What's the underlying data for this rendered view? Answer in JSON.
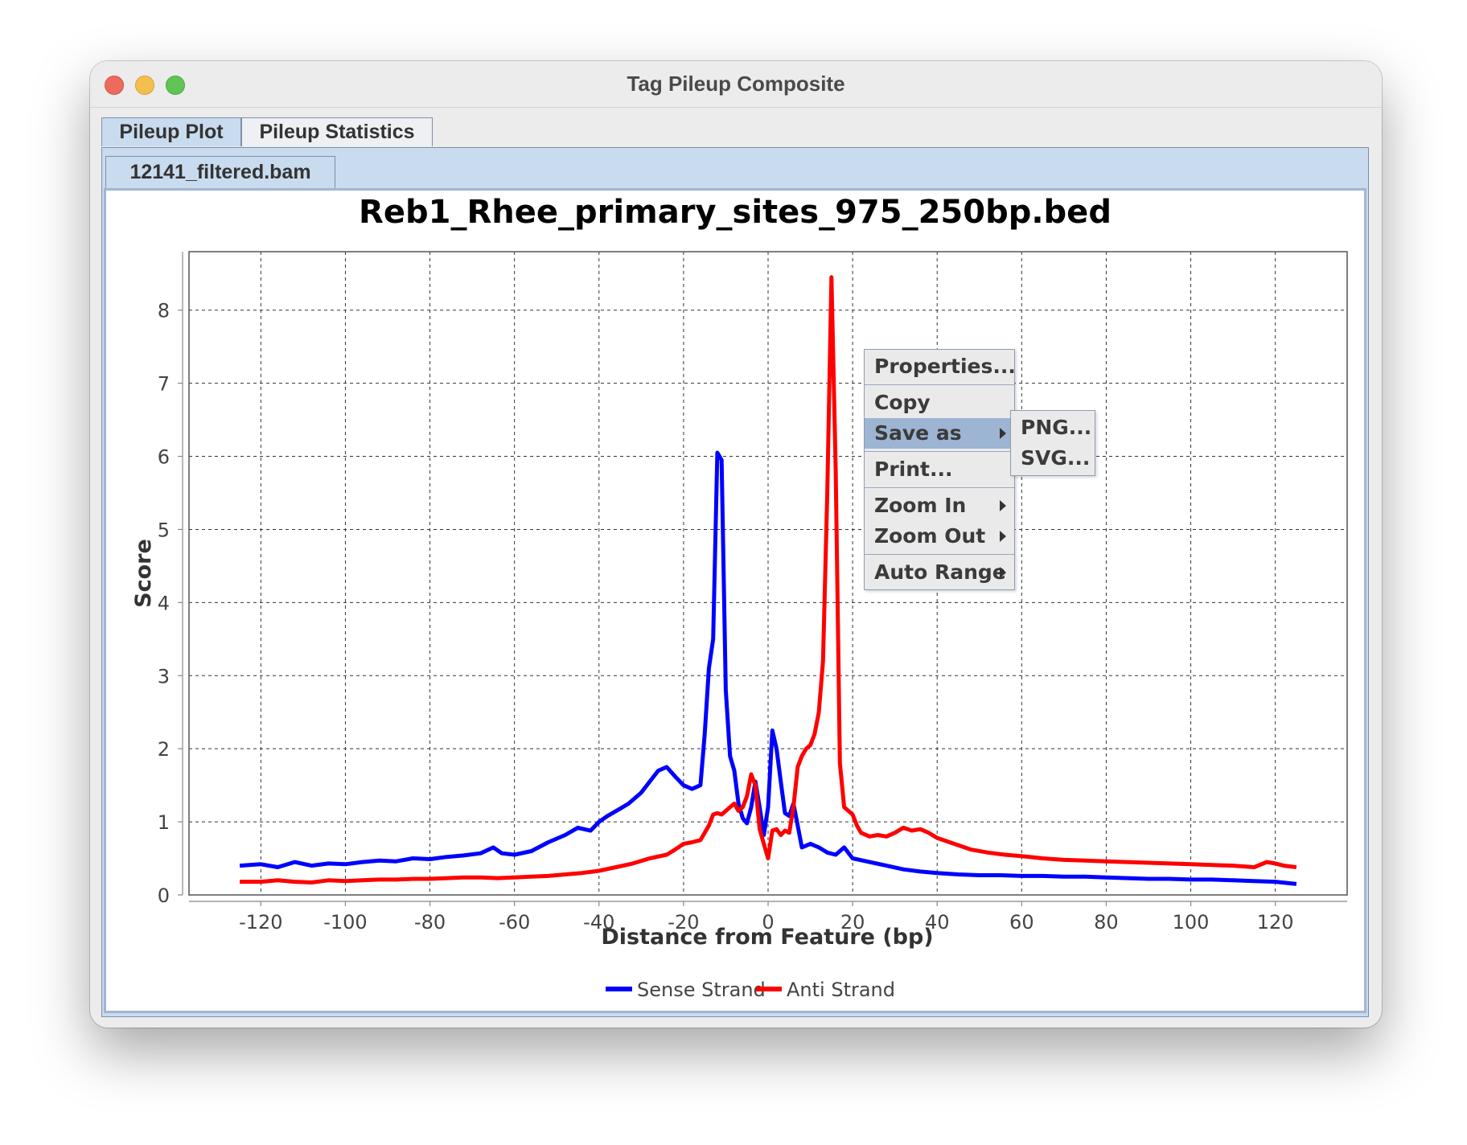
{
  "window": {
    "title": "Tag Pileup Composite"
  },
  "tabs": [
    {
      "label": "Pileup Plot",
      "active": true
    },
    {
      "label": "Pileup Statistics",
      "active": false
    }
  ],
  "file_tab": {
    "label": "12141_filtered.bam"
  },
  "context_menu": {
    "items": [
      {
        "label": "Properties...",
        "submenu": false
      },
      {
        "label": "Copy",
        "submenu": false
      },
      {
        "label": "Save as",
        "submenu": true,
        "highlighted": true
      },
      {
        "label": "Print...",
        "submenu": false
      },
      {
        "label": "Zoom In",
        "submenu": true
      },
      {
        "label": "Zoom Out",
        "submenu": true
      },
      {
        "label": "Auto Range",
        "submenu": true
      }
    ],
    "save_as_submenu": [
      "PNG...",
      "SVG..."
    ]
  },
  "chart_data": {
    "type": "line",
    "title": "Reb1_Rhee_primary_sites_975_250bp.bed",
    "xlabel": "Distance from Feature (bp)",
    "ylabel": "Score",
    "xlim": [
      -137,
      137
    ],
    "ylim": [
      0,
      8.8
    ],
    "xticks": [
      -120,
      -100,
      -80,
      -60,
      -40,
      -20,
      0,
      20,
      40,
      60,
      80,
      100,
      120
    ],
    "yticks": [
      0,
      1,
      2,
      3,
      4,
      5,
      6,
      7,
      8
    ],
    "grid": true,
    "legend": "bottom-center",
    "series": [
      {
        "name": "Sense Strand",
        "color": "#0000ff",
        "points": [
          [
            -125,
            0.4
          ],
          [
            -120,
            0.42
          ],
          [
            -116,
            0.38
          ],
          [
            -112,
            0.45
          ],
          [
            -108,
            0.4
          ],
          [
            -104,
            0.43
          ],
          [
            -100,
            0.42
          ],
          [
            -96,
            0.45
          ],
          [
            -92,
            0.47
          ],
          [
            -88,
            0.46
          ],
          [
            -84,
            0.5
          ],
          [
            -80,
            0.49
          ],
          [
            -76,
            0.52
          ],
          [
            -72,
            0.54
          ],
          [
            -68,
            0.57
          ],
          [
            -65,
            0.65
          ],
          [
            -63,
            0.57
          ],
          [
            -60,
            0.55
          ],
          [
            -56,
            0.6
          ],
          [
            -52,
            0.72
          ],
          [
            -48,
            0.82
          ],
          [
            -45,
            0.92
          ],
          [
            -42,
            0.88
          ],
          [
            -40,
            1.0
          ],
          [
            -38,
            1.08
          ],
          [
            -35,
            1.18
          ],
          [
            -33,
            1.25
          ],
          [
            -30,
            1.4
          ],
          [
            -28,
            1.55
          ],
          [
            -26,
            1.7
          ],
          [
            -24,
            1.75
          ],
          [
            -22,
            1.62
          ],
          [
            -20,
            1.5
          ],
          [
            -18,
            1.45
          ],
          [
            -16,
            1.5
          ],
          [
            -15,
            2.2
          ],
          [
            -14,
            3.1
          ],
          [
            -13,
            3.5
          ],
          [
            -12,
            6.05
          ],
          [
            -11,
            5.95
          ],
          [
            -10,
            2.8
          ],
          [
            -9,
            1.9
          ],
          [
            -8,
            1.7
          ],
          [
            -7,
            1.25
          ],
          [
            -6,
            1.05
          ],
          [
            -5,
            0.98
          ],
          [
            -4,
            1.2
          ],
          [
            -3,
            1.55
          ],
          [
            -2,
            1.2
          ],
          [
            -1,
            0.82
          ],
          [
            0,
            1.2
          ],
          [
            1,
            2.25
          ],
          [
            2,
            2.0
          ],
          [
            3,
            1.55
          ],
          [
            4,
            1.12
          ],
          [
            5,
            1.08
          ],
          [
            6,
            1.25
          ],
          [
            7,
            0.95
          ],
          [
            8,
            0.65
          ],
          [
            10,
            0.7
          ],
          [
            12,
            0.65
          ],
          [
            14,
            0.58
          ],
          [
            16,
            0.55
          ],
          [
            18,
            0.65
          ],
          [
            20,
            0.5
          ],
          [
            24,
            0.45
          ],
          [
            28,
            0.4
          ],
          [
            32,
            0.35
          ],
          [
            36,
            0.32
          ],
          [
            40,
            0.3
          ],
          [
            45,
            0.28
          ],
          [
            50,
            0.27
          ],
          [
            55,
            0.27
          ],
          [
            60,
            0.26
          ],
          [
            65,
            0.26
          ],
          [
            70,
            0.25
          ],
          [
            75,
            0.25
          ],
          [
            80,
            0.24
          ],
          [
            85,
            0.23
          ],
          [
            90,
            0.22
          ],
          [
            95,
            0.22
          ],
          [
            100,
            0.21
          ],
          [
            105,
            0.21
          ],
          [
            110,
            0.2
          ],
          [
            115,
            0.19
          ],
          [
            120,
            0.18
          ],
          [
            125,
            0.15
          ]
        ]
      },
      {
        "name": "Anti Strand",
        "color": "#ff0000",
        "points": [
          [
            -125,
            0.18
          ],
          [
            -120,
            0.18
          ],
          [
            -116,
            0.2
          ],
          [
            -112,
            0.18
          ],
          [
            -108,
            0.17
          ],
          [
            -104,
            0.2
          ],
          [
            -100,
            0.19
          ],
          [
            -96,
            0.2
          ],
          [
            -92,
            0.21
          ],
          [
            -88,
            0.21
          ],
          [
            -84,
            0.22
          ],
          [
            -80,
            0.22
          ],
          [
            -76,
            0.23
          ],
          [
            -72,
            0.24
          ],
          [
            -68,
            0.24
          ],
          [
            -64,
            0.23
          ],
          [
            -60,
            0.24
          ],
          [
            -56,
            0.25
          ],
          [
            -52,
            0.26
          ],
          [
            -48,
            0.28
          ],
          [
            -44,
            0.3
          ],
          [
            -40,
            0.33
          ],
          [
            -36,
            0.38
          ],
          [
            -32,
            0.43
          ],
          [
            -28,
            0.5
          ],
          [
            -24,
            0.55
          ],
          [
            -22,
            0.62
          ],
          [
            -20,
            0.7
          ],
          [
            -18,
            0.72
          ],
          [
            -16,
            0.75
          ],
          [
            -14,
            0.95
          ],
          [
            -13,
            1.1
          ],
          [
            -12,
            1.12
          ],
          [
            -11,
            1.1
          ],
          [
            -10,
            1.15
          ],
          [
            -9,
            1.2
          ],
          [
            -8,
            1.25
          ],
          [
            -7,
            1.15
          ],
          [
            -6,
            1.2
          ],
          [
            -5,
            1.35
          ],
          [
            -4,
            1.65
          ],
          [
            -3,
            1.5
          ],
          [
            -2,
            0.9
          ],
          [
            -1,
            0.7
          ],
          [
            0,
            0.5
          ],
          [
            1,
            0.88
          ],
          [
            2,
            0.9
          ],
          [
            3,
            0.82
          ],
          [
            4,
            0.88
          ],
          [
            5,
            0.85
          ],
          [
            6,
            1.2
          ],
          [
            7,
            1.75
          ],
          [
            8,
            1.9
          ],
          [
            9,
            2.0
          ],
          [
            10,
            2.05
          ],
          [
            11,
            2.2
          ],
          [
            12,
            2.5
          ],
          [
            13,
            3.2
          ],
          [
            14,
            5.5
          ],
          [
            15,
            8.45
          ],
          [
            16,
            5.8
          ],
          [
            17,
            1.8
          ],
          [
            18,
            1.2
          ],
          [
            19,
            1.15
          ],
          [
            20,
            1.1
          ],
          [
            21,
            0.95
          ],
          [
            22,
            0.85
          ],
          [
            24,
            0.8
          ],
          [
            26,
            0.82
          ],
          [
            28,
            0.8
          ],
          [
            30,
            0.85
          ],
          [
            32,
            0.92
          ],
          [
            34,
            0.88
          ],
          [
            36,
            0.9
          ],
          [
            38,
            0.85
          ],
          [
            40,
            0.78
          ],
          [
            44,
            0.7
          ],
          [
            48,
            0.62
          ],
          [
            52,
            0.58
          ],
          [
            56,
            0.55
          ],
          [
            60,
            0.53
          ],
          [
            65,
            0.5
          ],
          [
            70,
            0.48
          ],
          [
            75,
            0.47
          ],
          [
            80,
            0.46
          ],
          [
            85,
            0.45
          ],
          [
            90,
            0.44
          ],
          [
            95,
            0.43
          ],
          [
            100,
            0.42
          ],
          [
            105,
            0.41
          ],
          [
            110,
            0.4
          ],
          [
            115,
            0.38
          ],
          [
            118,
            0.45
          ],
          [
            120,
            0.43
          ],
          [
            122,
            0.4
          ],
          [
            125,
            0.38
          ]
        ]
      }
    ]
  }
}
